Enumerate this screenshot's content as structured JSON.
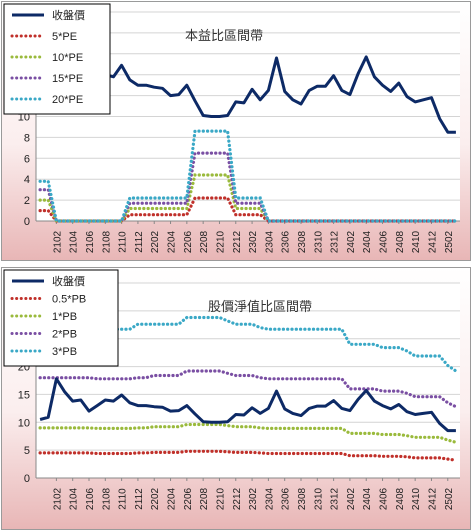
{
  "chart_data": [
    {
      "type": "line",
      "title": "本益比區間帶",
      "xlabel": "",
      "ylabel": "",
      "ylim": [
        0,
        20
      ],
      "yticks": [
        0,
        2,
        4,
        6,
        8,
        10,
        12,
        14,
        16,
        18,
        20
      ],
      "grid": "horizontal",
      "legend": "top-left",
      "xticks": [
        "2102",
        "2104",
        "2106",
        "2108",
        "2110",
        "2112",
        "2202",
        "2204",
        "2206",
        "2208",
        "2210",
        "2212",
        "2302",
        "2304",
        "2306",
        "2308",
        "2310",
        "2312",
        "2402",
        "2404",
        "2406",
        "2408",
        "2410",
        "2412",
        "2502"
      ],
      "series": [
        {
          "name": "收盤價",
          "color": "#0d2a66",
          "style": "solid",
          "values": [
            10.5,
            10.9,
            17.8,
            15.5,
            13.8,
            14.0,
            12.0,
            13.0,
            14.0,
            13.8,
            14.9,
            13.5,
            13.0,
            13.0,
            12.8,
            12.7,
            12.0,
            12.1,
            13.0,
            11.5,
            10.1,
            10.0,
            10.0,
            10.1,
            11.4,
            11.3,
            12.6,
            11.6,
            12.5,
            15.6,
            12.4,
            11.6,
            11.2,
            12.5,
            12.9,
            12.9,
            13.9,
            12.5,
            12.1,
            14.1,
            15.7,
            13.8,
            13.0,
            12.4,
            13.2,
            11.9,
            11.4,
            11.6,
            11.8,
            9.8,
            8.5,
            8.5
          ]
        },
        {
          "name": "5*PE",
          "color": "#c0302a",
          "style": "dotted",
          "values": [
            1.0,
            1.0,
            0,
            0,
            0,
            0,
            0,
            0,
            0,
            0,
            0,
            0.6,
            0.6,
            0.6,
            0.6,
            0.6,
            0.6,
            0.6,
            0.6,
            2.2,
            2.2,
            2.2,
            2.2,
            2.2,
            0.6,
            0.6,
            0.6,
            0.6,
            0,
            0,
            0,
            0,
            0,
            0,
            0,
            0,
            0,
            0,
            0,
            0,
            0,
            0,
            0,
            0,
            0,
            0,
            0,
            0,
            0,
            0,
            0,
            0
          ]
        },
        {
          "name": "10*PE",
          "color": "#9aba3c",
          "style": "dotted",
          "values": [
            2.0,
            2.0,
            0,
            0,
            0,
            0,
            0,
            0,
            0,
            0,
            0,
            1.2,
            1.2,
            1.2,
            1.2,
            1.2,
            1.2,
            1.2,
            1.2,
            4.4,
            4.4,
            4.4,
            4.4,
            4.4,
            1.2,
            1.2,
            1.2,
            1.2,
            0,
            0,
            0,
            0,
            0,
            0,
            0,
            0,
            0,
            0,
            0,
            0,
            0,
            0,
            0,
            0,
            0,
            0,
            0,
            0,
            0,
            0,
            0,
            0
          ]
        },
        {
          "name": "15*PE",
          "color": "#7a4fa3",
          "style": "dotted",
          "values": [
            3.0,
            3.0,
            0,
            0,
            0,
            0,
            0,
            0,
            0,
            0,
            0,
            1.7,
            1.7,
            1.7,
            1.7,
            1.7,
            1.7,
            1.7,
            1.7,
            6.5,
            6.5,
            6.5,
            6.5,
            6.5,
            1.7,
            1.7,
            1.7,
            1.7,
            0,
            0,
            0,
            0,
            0,
            0,
            0,
            0,
            0,
            0,
            0,
            0,
            0,
            0,
            0,
            0,
            0,
            0,
            0,
            0,
            0,
            0,
            0,
            0
          ]
        },
        {
          "name": "20*PE",
          "color": "#3aa8c6",
          "style": "dotted",
          "values": [
            3.8,
            3.8,
            0,
            0,
            0,
            0,
            0,
            0,
            0,
            0,
            0,
            2.2,
            2.2,
            2.2,
            2.2,
            2.2,
            2.2,
            2.2,
            2.2,
            8.6,
            8.6,
            8.6,
            8.6,
            8.6,
            2.2,
            2.2,
            2.2,
            2.2,
            0,
            0,
            0,
            0,
            0,
            0,
            0,
            0,
            0,
            0,
            0,
            0,
            0,
            0,
            0,
            0,
            0,
            0,
            0,
            0,
            0,
            0,
            0,
            0
          ]
        }
      ]
    },
    {
      "type": "line",
      "title": "股價淨值比區間帶",
      "xlabel": "",
      "ylabel": "",
      "ylim": [
        0,
        35
      ],
      "yticks": [
        0,
        5,
        10,
        15,
        20,
        25,
        30,
        35
      ],
      "grid": "horizontal",
      "legend": "top-left",
      "xticks": [
        "2102",
        "2104",
        "2106",
        "2108",
        "2110",
        "2112",
        "2202",
        "2204",
        "2206",
        "2208",
        "2210",
        "2212",
        "2302",
        "2304",
        "2306",
        "2308",
        "2310",
        "2312",
        "2402",
        "2404",
        "2406",
        "2408",
        "2410",
        "2412",
        "2502"
      ],
      "series": [
        {
          "name": "收盤價",
          "color": "#0d2a66",
          "style": "solid",
          "values": [
            10.5,
            10.9,
            17.8,
            15.5,
            13.8,
            14.0,
            12.0,
            13.0,
            14.0,
            13.8,
            14.9,
            13.5,
            13.0,
            13.0,
            12.8,
            12.7,
            12.0,
            12.1,
            13.0,
            11.5,
            10.1,
            10.0,
            10.0,
            10.1,
            11.4,
            11.3,
            12.6,
            11.6,
            12.5,
            15.6,
            12.4,
            11.6,
            11.2,
            12.5,
            12.9,
            12.9,
            13.9,
            12.5,
            12.1,
            14.1,
            15.7,
            13.8,
            13.0,
            12.4,
            13.2,
            11.9,
            11.4,
            11.6,
            11.8,
            9.8,
            8.5,
            8.5
          ]
        },
        {
          "name": "0.5*PB",
          "color": "#c0302a",
          "style": "dotted",
          "values": [
            4.5,
            4.5,
            4.5,
            4.5,
            4.5,
            4.5,
            4.5,
            4.4,
            4.4,
            4.4,
            4.4,
            4.4,
            4.5,
            4.5,
            4.6,
            4.6,
            4.6,
            4.6,
            4.8,
            4.8,
            4.8,
            4.8,
            4.8,
            4.7,
            4.6,
            4.6,
            4.6,
            4.5,
            4.4,
            4.4,
            4.4,
            4.4,
            4.4,
            4.4,
            4.4,
            4.4,
            4.4,
            4.4,
            4.0,
            4.0,
            4.0,
            4.0,
            3.9,
            3.9,
            3.9,
            3.8,
            3.6,
            3.6,
            3.6,
            3.6,
            3.4,
            3.2
          ]
        },
        {
          "name": "1*PB",
          "color": "#9aba3c",
          "style": "dotted",
          "values": [
            9.0,
            9.0,
            9.0,
            9.0,
            9.0,
            9.0,
            9.0,
            8.9,
            8.9,
            8.9,
            8.9,
            8.9,
            9.0,
            9.0,
            9.2,
            9.2,
            9.2,
            9.2,
            9.6,
            9.6,
            9.6,
            9.6,
            9.6,
            9.4,
            9.2,
            9.2,
            9.2,
            9.0,
            8.9,
            8.9,
            8.9,
            8.9,
            8.9,
            8.9,
            8.9,
            8.9,
            8.9,
            8.9,
            8.0,
            8.0,
            8.0,
            8.0,
            7.8,
            7.8,
            7.8,
            7.6,
            7.3,
            7.3,
            7.3,
            7.3,
            6.8,
            6.4
          ]
        },
        {
          "name": "2*PB",
          "color": "#7a4fa3",
          "style": "dotted",
          "values": [
            18.0,
            18.0,
            18.0,
            18.0,
            18.0,
            18.0,
            18.0,
            17.8,
            17.8,
            17.8,
            17.8,
            17.8,
            18.0,
            18.0,
            18.4,
            18.4,
            18.4,
            18.4,
            19.2,
            19.2,
            19.2,
            19.2,
            19.2,
            18.8,
            18.4,
            18.4,
            18.4,
            18.0,
            17.8,
            17.8,
            17.8,
            17.8,
            17.8,
            17.8,
            17.8,
            17.8,
            17.8,
            17.8,
            16.0,
            16.0,
            16.0,
            16.0,
            15.6,
            15.6,
            15.6,
            15.2,
            14.6,
            14.6,
            14.6,
            14.6,
            13.5,
            12.8
          ]
        },
        {
          "name": "3*PB",
          "color": "#3aa8c6",
          "style": "dotted",
          "values": [
            27.0,
            27.0,
            27.0,
            27.0,
            27.0,
            27.0,
            27.0,
            26.7,
            26.7,
            26.7,
            26.7,
            26.7,
            27.6,
            27.6,
            27.6,
            27.6,
            27.6,
            27.6,
            28.8,
            28.8,
            28.8,
            28.8,
            28.8,
            28.2,
            27.6,
            27.6,
            27.6,
            27.0,
            26.7,
            26.7,
            26.7,
            26.7,
            26.7,
            26.7,
            26.7,
            26.7,
            26.7,
            26.7,
            24.0,
            24.0,
            24.0,
            24.0,
            23.4,
            23.4,
            23.4,
            22.8,
            21.9,
            21.9,
            21.9,
            21.9,
            20.2,
            19.2
          ]
        }
      ]
    }
  ]
}
